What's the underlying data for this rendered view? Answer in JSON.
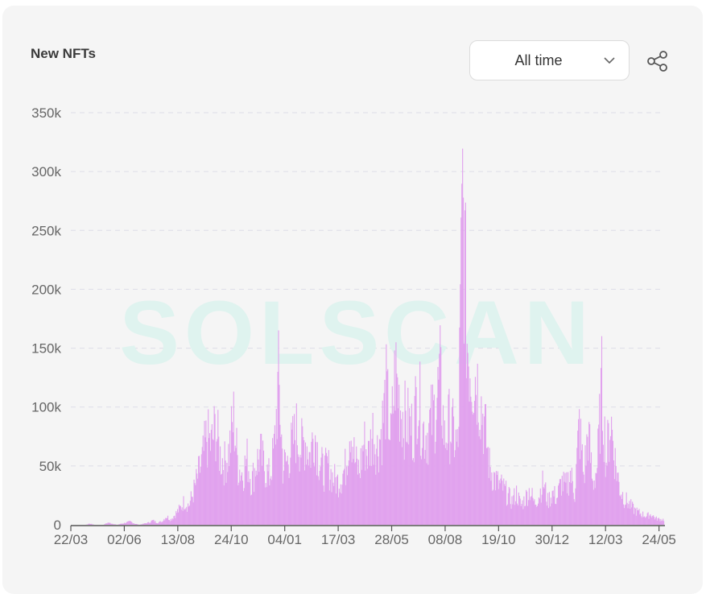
{
  "header": {
    "title": "New NFTs",
    "range_selector": {
      "selected": "All time"
    },
    "share_icon": "share-icon",
    "chevron_icon": "chevron-down-icon"
  },
  "watermark": {
    "text": "SOLSCAN",
    "color": "#dff3ef"
  },
  "colors": {
    "bar": "#e1a2ee",
    "bar_peak": "#d98ee8",
    "grid": "#dddde8",
    "axis": "#555555",
    "card": "#f5f5f5"
  },
  "chart_data": {
    "type": "bar",
    "title": "New NFTs",
    "xlabel": "",
    "ylabel": "",
    "ylim": [
      0,
      350000
    ],
    "y_ticks": [
      {
        "value": 0,
        "label": "0"
      },
      {
        "value": 50000,
        "label": "50k"
      },
      {
        "value": 100000,
        "label": "100k"
      },
      {
        "value": 150000,
        "label": "150k"
      },
      {
        "value": 200000,
        "label": "200k"
      },
      {
        "value": 250000,
        "label": "250k"
      },
      {
        "value": 300000,
        "label": "300k"
      },
      {
        "value": 350000,
        "label": "350k"
      }
    ],
    "x_ticks": [
      "22/03",
      "02/06",
      "13/08",
      "24/10",
      "04/01",
      "17/03",
      "28/05",
      "08/08",
      "19/10",
      "30/12",
      "12/03",
      "24/05"
    ],
    "grid": true,
    "legend": "none",
    "approx_segments": [
      {
        "from_tick": "22/03",
        "to_tick": "02/06",
        "values_k": [
          0,
          0,
          0,
          0,
          1,
          0,
          0,
          0,
          2,
          1,
          0,
          1
        ]
      },
      {
        "from_tick": "02/06",
        "to_tick": "13/08",
        "values_k": [
          2,
          3,
          1,
          0,
          1,
          2,
          4,
          2,
          3,
          8,
          5,
          10
        ]
      },
      {
        "from_tick": "13/08",
        "to_tick": "24/10",
        "values_k": [
          15,
          22,
          18,
          30,
          45,
          60,
          82,
          75,
          92,
          65,
          58,
          70
        ]
      },
      {
        "from_tick": "24/10",
        "to_tick": "04/01",
        "values_k": [
          100,
          55,
          48,
          62,
          40,
          58,
          66,
          52,
          45,
          70,
          135,
          55
        ]
      },
      {
        "from_tick": "04/01",
        "to_tick": "17/03",
        "values_k": [
          60,
          75,
          88,
          72,
          80,
          65,
          90,
          62,
          50,
          55,
          45,
          40
        ]
      },
      {
        "from_tick": "17/03",
        "to_tick": "28/05",
        "values_k": [
          45,
          55,
          98,
          60,
          50,
          78,
          65,
          88,
          72,
          90,
          125,
          80
        ]
      },
      {
        "from_tick": "28/05",
        "to_tick": "08/08",
        "values_k": [
          145,
          115,
          100,
          95,
          88,
          130,
          92,
          85,
          98,
          110,
          138,
          80
        ]
      },
      {
        "from_tick": "08/08",
        "to_tick": "19/10",
        "values_k": [
          95,
          85,
          70,
          310,
          175,
          145,
          140,
          118,
          90,
          55,
          45,
          38
        ]
      },
      {
        "from_tick": "19/10",
        "to_tick": "30/12",
        "values_k": [
          35,
          28,
          22,
          30,
          18,
          25,
          33,
          20,
          28,
          40,
          22,
          30
        ]
      },
      {
        "from_tick": "30/12",
        "to_tick": "12/03",
        "values_k": [
          25,
          40,
          35,
          48,
          30,
          95,
          45,
          88,
          38,
          55,
          130,
          60
        ]
      },
      {
        "from_tick": "12/03",
        "to_tick": "24/05",
        "values_k": [
          100,
          60,
          35,
          25,
          20,
          15,
          12,
          10,
          8,
          10,
          6,
          5
        ]
      }
    ],
    "peak": {
      "value": 311000,
      "near_tick": "08/08"
    }
  }
}
